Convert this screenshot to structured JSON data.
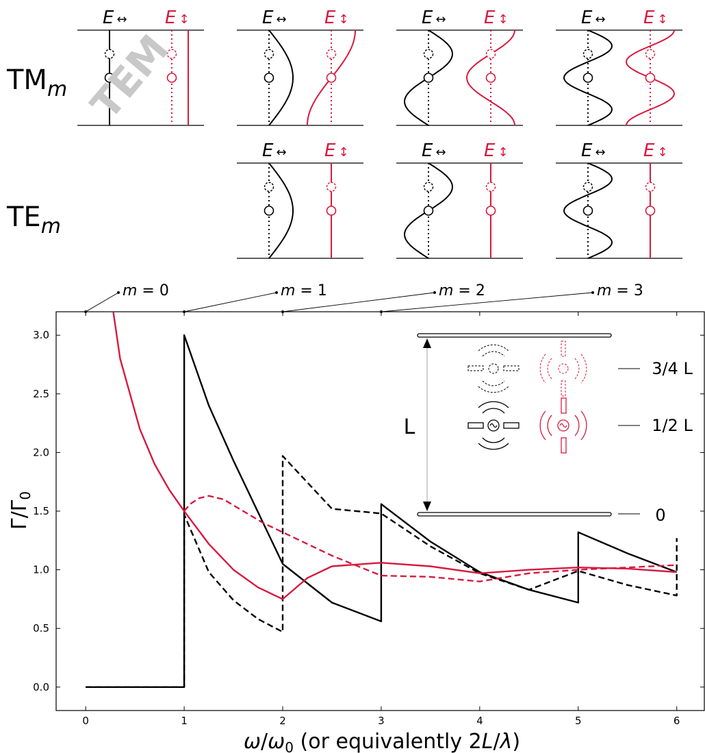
{
  "colors": {
    "black": "#000000",
    "red": "#d7193f",
    "watermark": "#c8c8c8",
    "guide": "#b0b0b0"
  },
  "modes": {
    "tm_label_main": "TM",
    "tm_label_sub": "m",
    "te_label_main": "TE",
    "te_label_sub": "m",
    "field_symbol": "E",
    "parallel_symbol": "↔",
    "perpendicular_symbol": "↕",
    "tem_watermark": "TEM",
    "tm_panels": [
      {
        "m": 0,
        "parallel_shape": "uniform",
        "perpendicular_shape": "zero"
      },
      {
        "m": 1,
        "parallel_shape": "sin",
        "perpendicular_shape": "cos"
      },
      {
        "m": 2,
        "parallel_shape": "sin",
        "perpendicular_shape": "cos"
      },
      {
        "m": 3,
        "parallel_shape": "sin",
        "perpendicular_shape": "cos"
      }
    ],
    "te_panels": [
      {
        "m": 1,
        "parallel_shape": "sin",
        "perpendicular_shape": "zero"
      },
      {
        "m": 2,
        "parallel_shape": "sin",
        "perpendicular_shape": "zero"
      },
      {
        "m": 3,
        "parallel_shape": "sin",
        "perpendicular_shape": "zero"
      }
    ]
  },
  "cutoff_labels": [
    "m = 0",
    "m = 1",
    "m = 2",
    "m = 3"
  ],
  "inset": {
    "gap_label": "L",
    "position_labels": [
      "3/4 L",
      "1/2 L",
      "0"
    ]
  },
  "chart_data": {
    "type": "line",
    "xlabel": "ω/ω₀ (or equivalently 2L/λ)",
    "ylabel": "Γ/Γ₀",
    "xlim": [
      -0.3,
      6.28
    ],
    "ylim": [
      -0.2,
      3.2
    ],
    "xticks": [
      0,
      1,
      2,
      3,
      4,
      5,
      6
    ],
    "yticks": [
      0.0,
      0.5,
      1.0,
      1.5,
      2.0,
      2.5,
      3.0
    ],
    "ytick_labels": [
      "0.0",
      "0.5",
      "1.0",
      "1.5",
      "2.0",
      "2.5",
      "3.0"
    ],
    "grid": false,
    "series": [
      {
        "id": "parallel-mid",
        "color": "black",
        "dash": "solid",
        "x": [
          0,
          1,
          1,
          1.25,
          1.5,
          2,
          2.5,
          3,
          3,
          3.5,
          4,
          4.5,
          5,
          5,
          5.5,
          6
        ],
        "y": [
          0,
          0,
          3.0,
          2.4,
          1.93,
          1.05,
          0.72,
          0.56,
          1.56,
          1.24,
          0.98,
          0.83,
          0.72,
          1.32,
          1.14,
          0.98
        ]
      },
      {
        "id": "parallel-quarter",
        "color": "black",
        "dash": "dashed",
        "x": [
          0,
          1,
          1,
          1.25,
          1.5,
          1.75,
          2,
          2,
          2.5,
          3,
          3.5,
          4,
          4.5,
          5,
          5.5,
          6,
          6
        ],
        "y": [
          0,
          0,
          1.47,
          0.98,
          0.74,
          0.58,
          0.47,
          1.97,
          1.52,
          1.48,
          1.2,
          0.97,
          0.83,
          0.99,
          0.87,
          0.78,
          1.27
        ]
      },
      {
        "id": "perpendicular-mid",
        "color": "red",
        "dash": "solid",
        "x": [
          0.28,
          0.35,
          0.45,
          0.55,
          0.7,
          0.85,
          1,
          1.25,
          1.5,
          1.75,
          2,
          2.25,
          2.5,
          3,
          3.5,
          4,
          4.5,
          5,
          5.5,
          6
        ],
        "y": [
          3.2,
          2.8,
          2.5,
          2.2,
          1.9,
          1.68,
          1.5,
          1.22,
          1.0,
          0.85,
          0.75,
          0.93,
          1.03,
          1.06,
          1.03,
          0.97,
          1.0,
          1.02,
          1.01,
          0.98
        ]
      },
      {
        "id": "perpendicular-quarter",
        "color": "red",
        "dash": "dashed",
        "x": [
          1,
          1.06,
          1.15,
          1.25,
          1.4,
          1.6,
          1.8,
          2,
          2.5,
          3,
          3.5,
          4,
          4.5,
          5,
          5.5,
          6
        ],
        "y": [
          1.5,
          1.56,
          1.61,
          1.63,
          1.6,
          1.5,
          1.4,
          1.32,
          1.12,
          0.95,
          0.94,
          0.9,
          0.97,
          1.0,
          1.02,
          1.04
        ]
      }
    ]
  }
}
